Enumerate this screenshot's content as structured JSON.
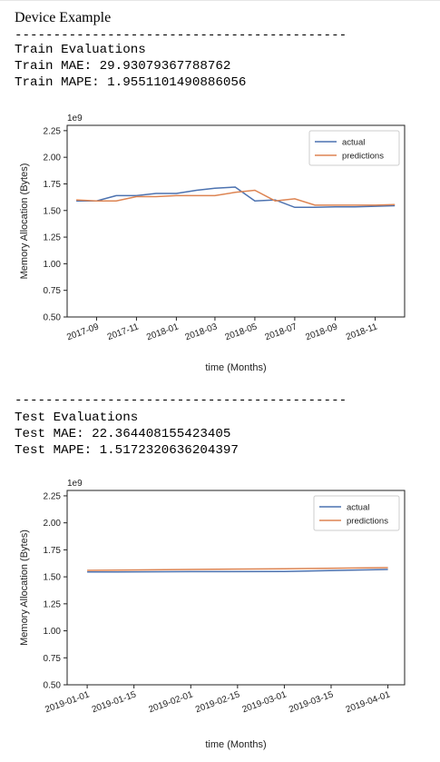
{
  "page": {
    "title": "Device Example",
    "separator": "-------------------------------------------",
    "train": {
      "heading": "Train Evaluations",
      "mae": "Train MAE: 29.93079367788762",
      "mape": "Train MAPE: 1.9551101490886056"
    },
    "test": {
      "heading": "Test Evaluations",
      "mae": "Test MAE: 22.364408155423405",
      "mape": "Test MAPE: 1.5172320636204397"
    }
  },
  "chart_data": [
    {
      "type": "line",
      "xlabel": "time (Months)",
      "ylabel": "Memory Allocation (Bytes)",
      "y_multiplier_label": "1e9",
      "ylim": [
        0.5,
        2.3
      ],
      "yticks": [
        "0.50",
        "0.75",
        "1.00",
        "1.25",
        "1.50",
        "1.75",
        "2.00",
        "2.25"
      ],
      "xticks": [
        "2017-09",
        "2017-11",
        "2018-01",
        "2018-03",
        "2018-05",
        "2018-07",
        "2018-09",
        "2018-11"
      ],
      "x": [
        "2017-08",
        "2017-09",
        "2017-10",
        "2017-11",
        "2017-12",
        "2018-01",
        "2018-02",
        "2018-03",
        "2018-04",
        "2018-05",
        "2018-06",
        "2018-07",
        "2018-08",
        "2018-09",
        "2018-10",
        "2018-11",
        "2018-12"
      ],
      "series": [
        {
          "name": "actual",
          "color": "#4c72b0",
          "values": [
            1.59,
            1.59,
            1.64,
            1.64,
            1.66,
            1.66,
            1.69,
            1.71,
            1.72,
            1.59,
            1.6,
            1.53,
            1.53,
            1.535,
            1.535,
            1.54,
            1.545
          ]
        },
        {
          "name": "predictions",
          "color": "#dd8452",
          "values": [
            1.6,
            1.59,
            1.59,
            1.63,
            1.63,
            1.64,
            1.64,
            1.64,
            1.67,
            1.69,
            1.59,
            1.61,
            1.55,
            1.55,
            1.55,
            1.55,
            1.555
          ]
        }
      ],
      "legend": "top-right",
      "grid": false
    },
    {
      "type": "line",
      "xlabel": "time (Months)",
      "ylabel": "Memory Allocation (Bytes)",
      "y_multiplier_label": "1e9",
      "ylim": [
        0.5,
        2.3
      ],
      "yticks": [
        "0.50",
        "0.75",
        "1.00",
        "1.25",
        "1.50",
        "1.75",
        "2.00",
        "2.25"
      ],
      "xticks": [
        "2019-01-01",
        "2019-01-15",
        "2019-02-01",
        "2019-02-15",
        "2019-03-01",
        "2019-03-15",
        "2019-04-01"
      ],
      "x": [
        "2019-01-01",
        "2019-02-01",
        "2019-03-01",
        "2019-04-01"
      ],
      "series": [
        {
          "name": "actual",
          "color": "#4c72b0",
          "values": [
            1.545,
            1.548,
            1.55,
            1.568
          ]
        },
        {
          "name": "predictions",
          "color": "#dd8452",
          "values": [
            1.56,
            1.568,
            1.575,
            1.585
          ]
        }
      ],
      "legend": "top-right",
      "grid": false
    }
  ]
}
